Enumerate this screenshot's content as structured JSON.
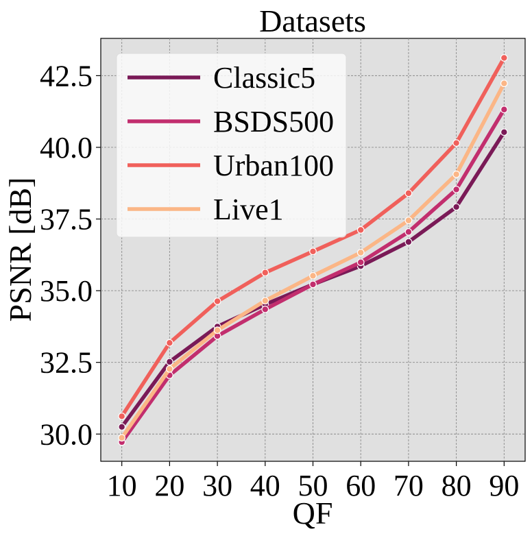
{
  "chart_data": {
    "type": "line",
    "title": "Datasets",
    "xlabel": "QF",
    "ylabel": "PSNR [dB]",
    "x": [
      10,
      20,
      30,
      40,
      50,
      60,
      70,
      80,
      90
    ],
    "x_tick_labels": [
      "10",
      "20",
      "30",
      "40",
      "50",
      "60",
      "70",
      "80",
      "90"
    ],
    "y_ticks": [
      30.0,
      32.5,
      35.0,
      37.5,
      40.0,
      42.5
    ],
    "y_tick_labels": [
      "30.0",
      "32.5",
      "35.0",
      "37.5",
      "40.0",
      "42.5"
    ],
    "xlim": [
      5.6,
      94.4
    ],
    "ylim": [
      29.05,
      43.8
    ],
    "grid": true,
    "legend_position": "top-left",
    "series": [
      {
        "name": "Classic5",
        "color": "#7a1a57",
        "values": [
          30.25,
          32.52,
          33.75,
          34.52,
          35.22,
          35.86,
          36.7,
          37.92,
          40.53
        ]
      },
      {
        "name": "BSDS500",
        "color": "#c22e6e",
        "values": [
          29.72,
          32.05,
          33.42,
          34.35,
          35.22,
          35.99,
          37.05,
          38.53,
          41.32
        ]
      },
      {
        "name": "Urban100",
        "color": "#f0605b",
        "values": [
          30.62,
          33.18,
          34.63,
          35.63,
          36.37,
          37.12,
          38.4,
          40.15,
          43.12
        ]
      },
      {
        "name": "Live1",
        "color": "#fbb686",
        "values": [
          29.87,
          32.27,
          33.62,
          34.65,
          35.52,
          36.33,
          37.45,
          39.06,
          42.23
        ]
      }
    ]
  }
}
